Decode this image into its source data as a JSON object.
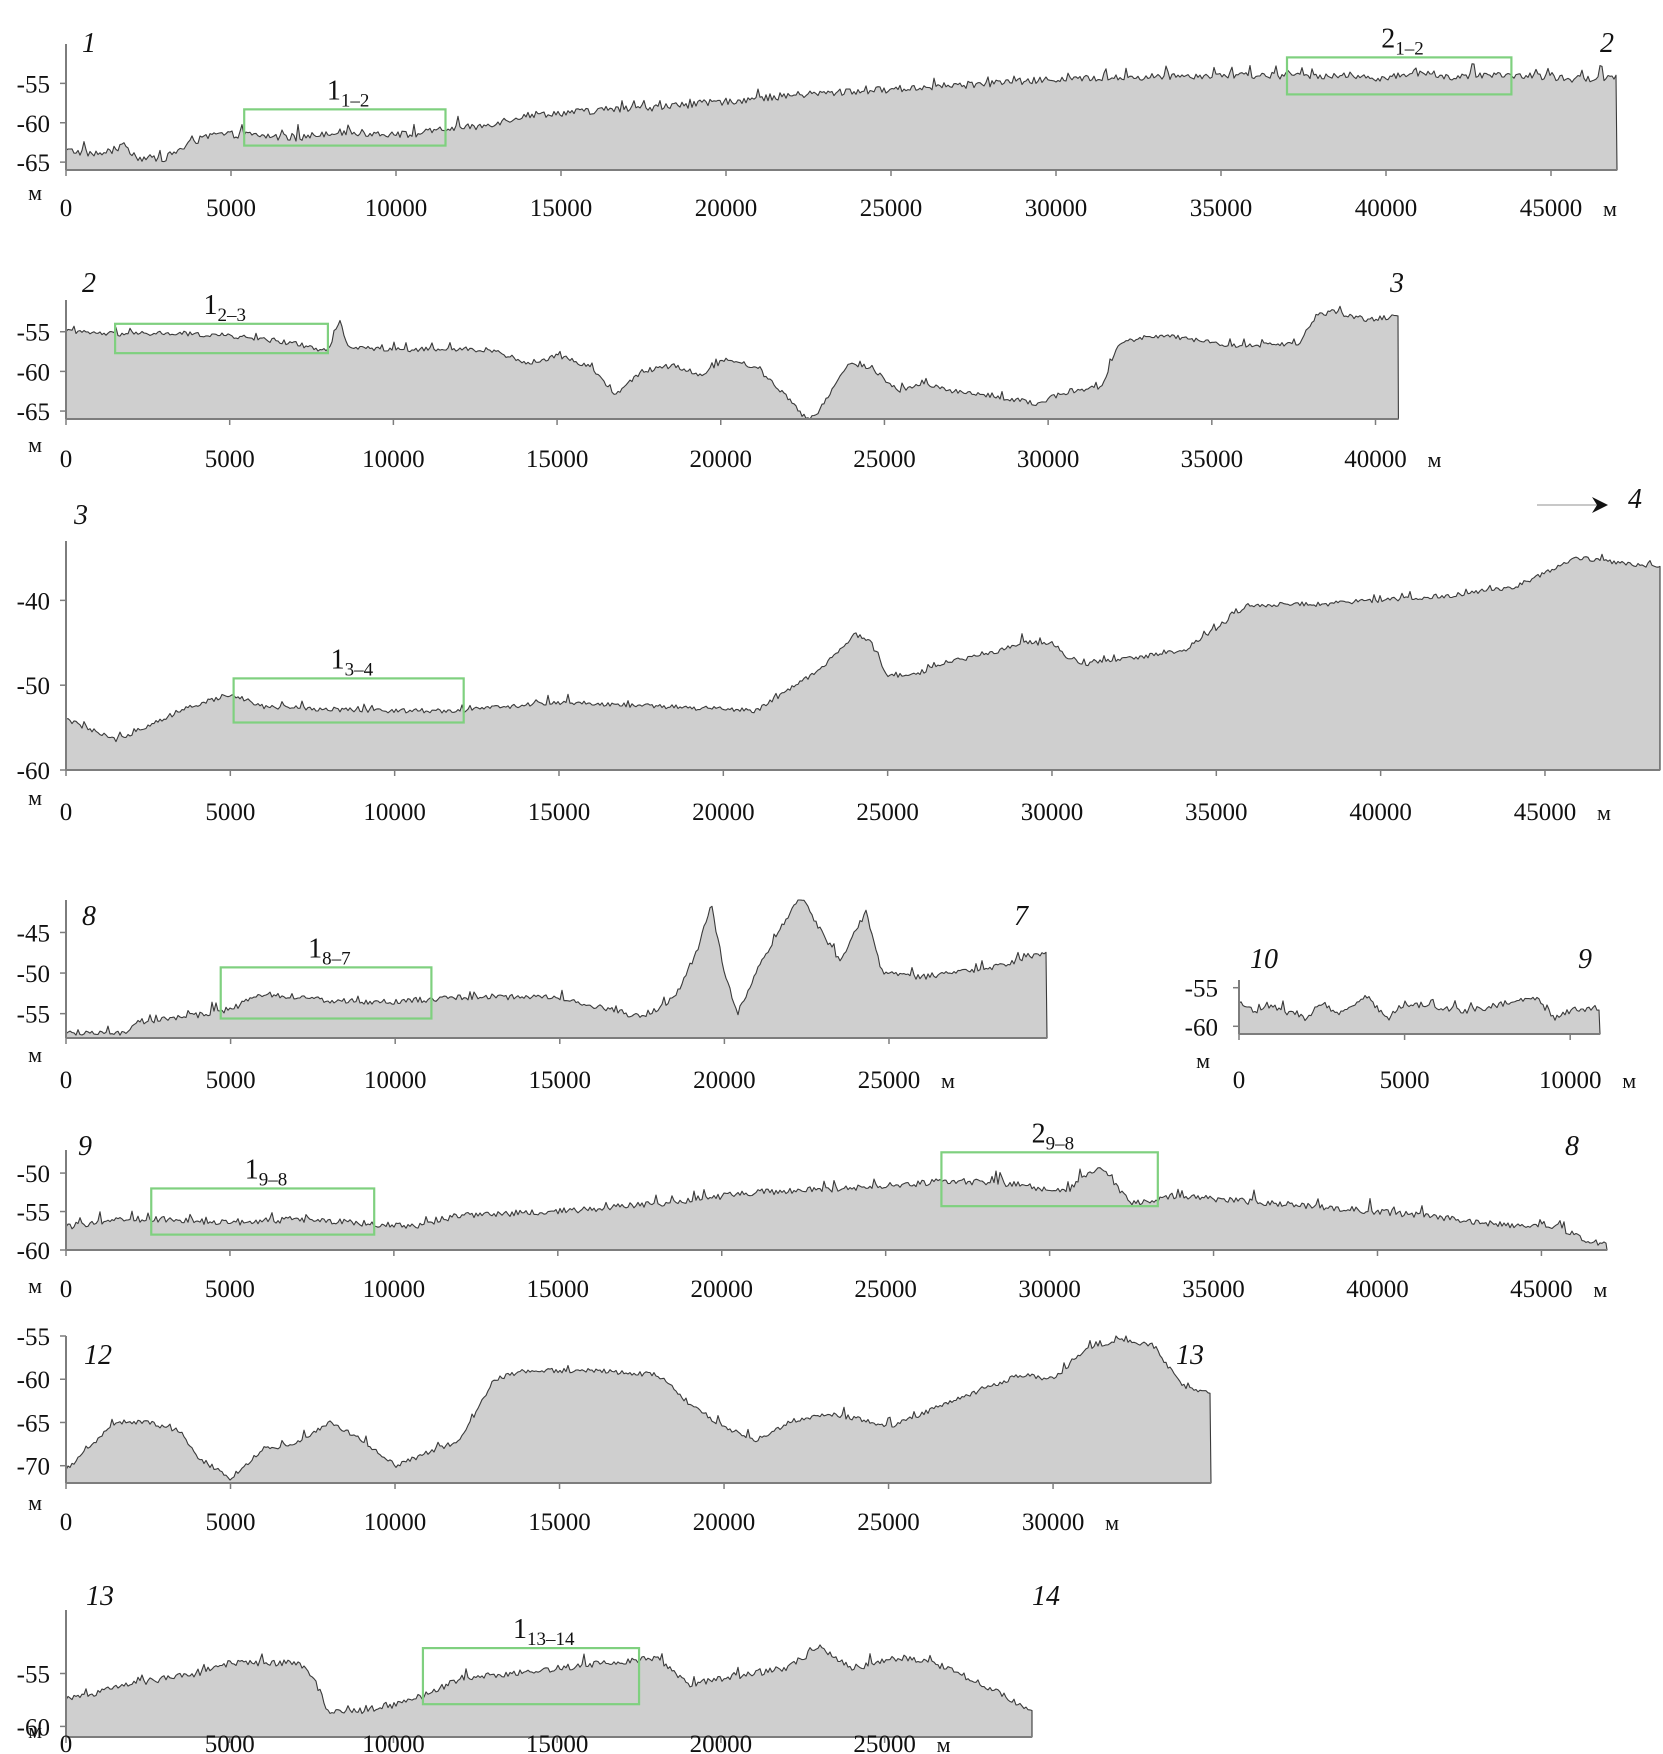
{
  "chart_data": [
    {
      "type": "area",
      "start_label": "1",
      "end_label": "2",
      "xlabel": "м",
      "ylabel": "м",
      "xlim": [
        0,
        47000
      ],
      "ylim": [
        -66,
        -50
      ],
      "xticks": [
        0,
        5000,
        10000,
        15000,
        20000,
        25000,
        30000,
        35000,
        40000,
        45000
      ],
      "yticks": [
        -55,
        -60,
        -65
      ],
      "x": [
        0,
        1000,
        1800,
        2200,
        3000,
        3800,
        4500,
        5500,
        7000,
        8000,
        9000,
        10500,
        11500,
        12500,
        14000,
        16000,
        18000,
        20000,
        22000,
        24000,
        26000,
        28000,
        30000,
        32000,
        34000,
        36000,
        38000,
        40000,
        41000,
        42000,
        44000,
        46000,
        47000
      ],
      "y": [
        -63.5,
        -64,
        -63,
        -64.5,
        -64.5,
        -62.5,
        -61.5,
        -61.5,
        -62,
        -61.2,
        -61.3,
        -61.5,
        -60.8,
        -60.5,
        -59,
        -58.5,
        -58,
        -57.3,
        -56.5,
        -56,
        -55.5,
        -55,
        -54.5,
        -54.3,
        -54,
        -54,
        -54,
        -54.3,
        -53.8,
        -54.2,
        -54,
        -54.5,
        -54
      ],
      "noise": 0.9,
      "boxes": [
        {
          "label": "1",
          "sub": "1–2",
          "x0": 5400,
          "x1": 11500,
          "y0": -58.3,
          "y1": -62.9
        },
        {
          "label": "2",
          "sub": "1–2",
          "x0": 37000,
          "x1": 43800,
          "y0": -51.7,
          "y1": -56.4
        }
      ]
    },
    {
      "type": "area",
      "start_label": "2",
      "end_label": "3",
      "xlabel": "м",
      "ylabel": "м",
      "xlim": [
        0,
        40700
      ],
      "ylim": [
        -66,
        -51
      ],
      "xticks": [
        0,
        5000,
        10000,
        15000,
        20000,
        25000,
        30000,
        35000,
        40000
      ],
      "yticks": [
        -55,
        -60,
        -65
      ],
      "x": [
        0,
        1500,
        3000,
        5000,
        7000,
        8000,
        8300,
        8600,
        10000,
        13000,
        14000,
        15000,
        16000,
        16700,
        17500,
        18500,
        19300,
        20000,
        21000,
        22000,
        22500,
        22800,
        23800,
        24500,
        25300,
        26000,
        27000,
        28000,
        29500,
        30500,
        31500,
        32000,
        33000,
        34000,
        35000,
        36000,
        37500,
        38000,
        38500,
        39500,
        40500
      ],
      "y": [
        -55,
        -55.3,
        -55.2,
        -55.5,
        -56.5,
        -57.5,
        -53.5,
        -57,
        -57.2,
        -57.3,
        -59,
        -58,
        -59.5,
        -63,
        -60,
        -59.2,
        -60.5,
        -58.5,
        -59.5,
        -63.5,
        -66,
        -65.5,
        -59,
        -59.5,
        -62.5,
        -61.5,
        -62.5,
        -63,
        -64,
        -62.5,
        -62,
        -56.5,
        -55.5,
        -55.8,
        -56.5,
        -56.8,
        -56.5,
        -53,
        -52.5,
        -53.5,
        -53
      ],
      "noise": 0.6,
      "boxes": [
        {
          "label": "1",
          "sub": "2–3",
          "x0": 1500,
          "x1": 8000,
          "y0": -54,
          "y1": -57.7
        }
      ]
    },
    {
      "type": "area",
      "start_label": "3",
      "end_label": "4",
      "xlabel": "м",
      "ylabel": "м",
      "xlim": [
        0,
        48500
      ],
      "ylim": [
        -60,
        -33
      ],
      "xticks": [
        0,
        5000,
        10000,
        15000,
        20000,
        25000,
        30000,
        35000,
        40000,
        45000
      ],
      "yticks": [
        -40,
        -50,
        -60
      ],
      "x": [
        0,
        1500,
        3500,
        5000,
        6000,
        9000,
        12000,
        15000,
        18000,
        21000,
        22000,
        23000,
        24000,
        24500,
        25000,
        26000,
        27000,
        28000,
        29000,
        30000,
        30500,
        31000,
        34000,
        36000,
        38000,
        40000,
        42000,
        44000,
        46000,
        47000,
        48500
      ],
      "y": [
        -54,
        -56.5,
        -53,
        -51,
        -52.5,
        -53,
        -53,
        -52,
        -52.5,
        -53,
        -50.5,
        -48,
        -44,
        -45,
        -49,
        -48.5,
        -47,
        -46.5,
        -45,
        -45,
        -47,
        -47.5,
        -46,
        -40.5,
        -40.5,
        -40,
        -39.5,
        -38.5,
        -35,
        -35.5,
        -36
      ],
      "noise": 0.55,
      "boxes": [
        {
          "label": "1",
          "sub": "3–4",
          "x0": 5100,
          "x1": 12100,
          "y0": -49.2,
          "y1": -54.4
        }
      ]
    },
    {
      "type": "area",
      "start_label": "8",
      "end_label": "7",
      "xlabel": "м",
      "ylabel": "м",
      "xlim": [
        0,
        29800
      ],
      "ylim": [
        -58,
        -41
      ],
      "xticks": [
        0,
        5000,
        10000,
        15000,
        20000,
        25000
      ],
      "yticks": [
        -45,
        -50,
        -55
      ],
      "x": [
        0,
        1800,
        2200,
        3500,
        5000,
        6000,
        8000,
        10000,
        12000,
        15000,
        17500,
        18500,
        19200,
        19600,
        20000,
        20400,
        21200,
        22300,
        23500,
        24300,
        24800,
        26000,
        28000,
        29800
      ],
      "y": [
        -57.5,
        -57.5,
        -56,
        -55.5,
        -54.5,
        -52.5,
        -53.5,
        -53.5,
        -53,
        -53,
        -55.5,
        -53,
        -47,
        -41.5,
        -50,
        -55,
        -48,
        -40.5,
        -48.5,
        -42.5,
        -50,
        -50.5,
        -49.5,
        -47.5
      ],
      "noise": 0.7,
      "boxes": [
        {
          "label": "1",
          "sub": "8–7",
          "x0": 4700,
          "x1": 11100,
          "y0": -49.3,
          "y1": -55.6
        }
      ]
    },
    {
      "type": "area",
      "start_label": "10",
      "end_label": "9",
      "xlabel": "м",
      "ylabel": "м",
      "xlim": [
        0,
        10900
      ],
      "ylim": [
        -61,
        -54
      ],
      "xticks": [
        0,
        5000,
        10000
      ],
      "yticks": [
        -55,
        -60
      ],
      "x": [
        0,
        500,
        1000,
        2000,
        2500,
        3000,
        3800,
        4500,
        5000,
        6000,
        7000,
        8000,
        9000,
        9500,
        10000,
        10900
      ],
      "y": [
        -57,
        -58,
        -57.5,
        -59,
        -57,
        -58.5,
        -56,
        -59,
        -57,
        -57.5,
        -58,
        -57,
        -56.5,
        -59,
        -58,
        -57.5
      ],
      "noise": 0.8,
      "boxes": []
    },
    {
      "type": "area",
      "start_label": "9",
      "end_label": "8",
      "xlabel": "м",
      "ylabel": "м",
      "xlim": [
        0,
        47000
      ],
      "ylim": [
        -60,
        -47
      ],
      "xticks": [
        0,
        5000,
        10000,
        15000,
        20000,
        25000,
        30000,
        35000,
        40000,
        45000
      ],
      "yticks": [
        -50,
        -55,
        -60
      ],
      "x": [
        0,
        1500,
        3000,
        5000,
        7000,
        9000,
        10500,
        12000,
        15000,
        18000,
        21000,
        24000,
        27000,
        29000,
        30500,
        31500,
        32500,
        34000,
        37000,
        40000,
        42000,
        44000,
        45500,
        46500,
        47000
      ],
      "y": [
        -57,
        -56,
        -56,
        -56.5,
        -56,
        -56.5,
        -57,
        -55.5,
        -55,
        -54,
        -52.5,
        -52,
        -51,
        -51.5,
        -52.5,
        -49,
        -54,
        -53,
        -54,
        -55,
        -55.8,
        -56.8,
        -57,
        -59,
        -59
      ],
      "noise": 0.8,
      "boxes": [
        {
          "label": "1",
          "sub": "9–8",
          "x0": 2600,
          "x1": 9400,
          "y0": -52,
          "y1": -58
        },
        {
          "label": "2",
          "sub": "9–8",
          "x0": 26700,
          "x1": 33300,
          "y0": -47.3,
          "y1": -54.3
        }
      ]
    },
    {
      "type": "area",
      "start_label": "12",
      "end_label": "13",
      "xlabel": "м",
      "ylabel": "м",
      "xlim": [
        0,
        34800
      ],
      "ylim": [
        -72,
        -55
      ],
      "xticks": [
        0,
        5000,
        10000,
        15000,
        20000,
        25000,
        30000
      ],
      "yticks": [
        -55,
        -60,
        -65,
        -70
      ],
      "x": [
        0,
        1500,
        2500,
        3500,
        4000,
        5000,
        6000,
        7000,
        8000,
        9000,
        10000,
        12000,
        13000,
        14000,
        16000,
        18000,
        19000,
        20000,
        21000,
        22000,
        23000,
        24000,
        25000,
        26000,
        28000,
        29000,
        30000,
        31000,
        32000,
        33000,
        34000,
        34800
      ],
      "y": [
        -70.5,
        -65,
        -65,
        -66,
        -69,
        -71.5,
        -68,
        -67.5,
        -65,
        -67,
        -70,
        -67,
        -60,
        -59,
        -59,
        -59.5,
        -63,
        -65.5,
        -67,
        -65,
        -64,
        -64.5,
        -65.5,
        -64,
        -61,
        -59.5,
        -60,
        -56.5,
        -55.5,
        -56,
        -61,
        -61.5
      ],
      "noise": 0.55,
      "boxes": []
    },
    {
      "type": "area",
      "start_label": "13",
      "end_label": "14",
      "xlabel": "м",
      "ylabel": "м",
      "xlim": [
        0,
        29500
      ],
      "ylim": [
        -61,
        -49
      ],
      "xticks": [
        0,
        5000,
        10000,
        15000,
        20000,
        25000
      ],
      "yticks": [
        -55,
        -60
      ],
      "x": [
        0,
        2000,
        4000,
        5000,
        7000,
        7500,
        8000,
        9000,
        10000,
        11000,
        12000,
        15000,
        18000,
        19000,
        20000,
        22000,
        23000,
        24000,
        25500,
        26500,
        28000,
        29500
      ],
      "y": [
        -57.5,
        -56,
        -55,
        -54,
        -54,
        -55,
        -58.5,
        -58.5,
        -58,
        -57,
        -55.5,
        -54.5,
        -53.5,
        -56,
        -55.5,
        -54.5,
        -52.5,
        -54.5,
        -53.5,
        -54,
        -56,
        -58.5
      ],
      "noise": 0.6,
      "boxes": [
        {
          "label": "1",
          "sub": "13–14",
          "x0": 10900,
          "x1": 17500,
          "y0": -52.6,
          "y1": -57.9
        }
      ]
    }
  ]
}
